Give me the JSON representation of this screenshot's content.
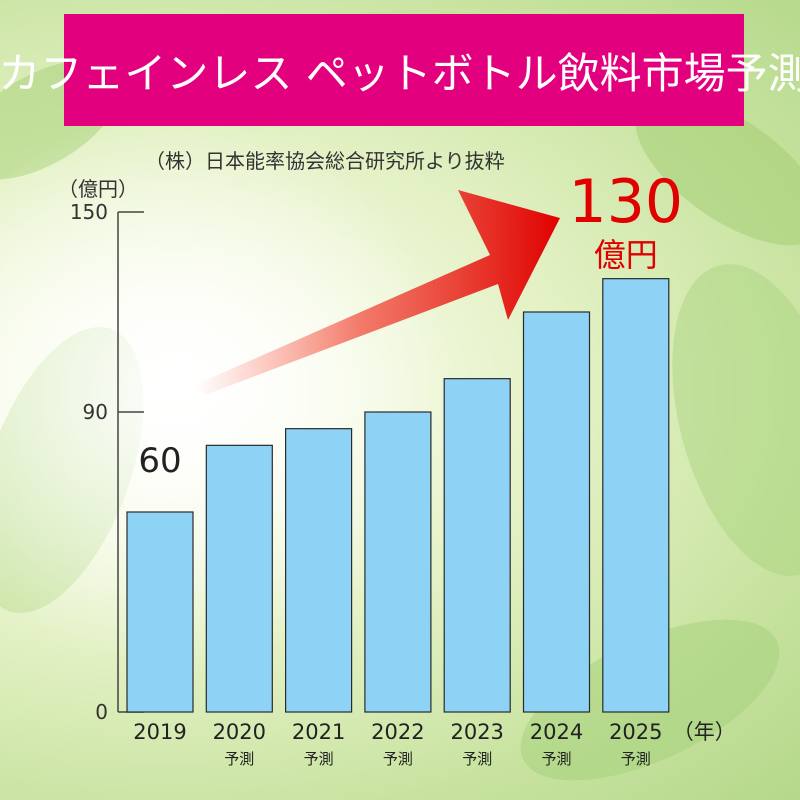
{
  "title": "カフェインレス ペットボトル飲料市場予測",
  "source": "（株）日本能率協会総合研究所より抜粋",
  "colors": {
    "banner": "#e3007f",
    "bar": "#8ed3f5",
    "bar_stroke": "#2a2a2a",
    "highlight": "#e00000",
    "arrow": "#e00000"
  },
  "chart_data": {
    "type": "bar",
    "ylabel": "（億円）",
    "xlabel": "（年）",
    "ylim": [
      0,
      150
    ],
    "yticks": [
      "150",
      "90",
      "0"
    ],
    "categories": [
      "2019",
      "2020",
      "2021",
      "2022",
      "2023",
      "2024",
      "2025"
    ],
    "sublabels": [
      "",
      "予測",
      "予測",
      "予測",
      "予測",
      "予測",
      "予測"
    ],
    "values": [
      60,
      80,
      85,
      90,
      100,
      120,
      130
    ],
    "annotations": {
      "first_value": "60",
      "last_value": "130",
      "last_unit": "億円"
    }
  }
}
